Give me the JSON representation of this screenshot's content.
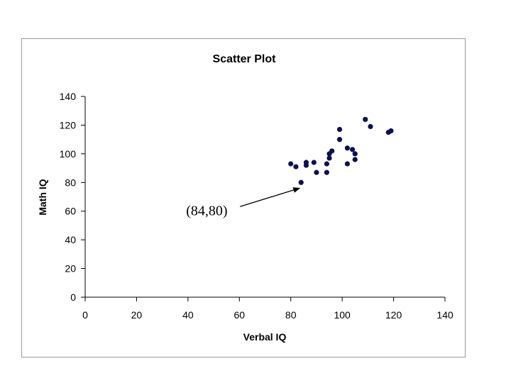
{
  "chart_data": {
    "type": "scatter",
    "title": "Scatter Plot",
    "xlabel": "Verbal IQ",
    "ylabel": "Math IQ",
    "xlim": [
      0,
      140
    ],
    "ylim": [
      0,
      140
    ],
    "xticks": [
      0,
      20,
      40,
      60,
      80,
      100,
      120,
      140
    ],
    "yticks": [
      0,
      20,
      40,
      60,
      80,
      100,
      120,
      140
    ],
    "grid": false,
    "legend": "none",
    "point_color": "#0d1050",
    "points": [
      {
        "x": 80,
        "y": 93
      },
      {
        "x": 82,
        "y": 91
      },
      {
        "x": 84,
        "y": 80
      },
      {
        "x": 86,
        "y": 94
      },
      {
        "x": 86,
        "y": 92
      },
      {
        "x": 89,
        "y": 94
      },
      {
        "x": 90,
        "y": 87
      },
      {
        "x": 94,
        "y": 93
      },
      {
        "x": 94,
        "y": 87
      },
      {
        "x": 95,
        "y": 97
      },
      {
        "x": 95,
        "y": 100
      },
      {
        "x": 96,
        "y": 102
      },
      {
        "x": 99,
        "y": 110
      },
      {
        "x": 99,
        "y": 117
      },
      {
        "x": 102,
        "y": 104
      },
      {
        "x": 102,
        "y": 93
      },
      {
        "x": 104,
        "y": 103
      },
      {
        "x": 105,
        "y": 96
      },
      {
        "x": 105,
        "y": 100
      },
      {
        "x": 109,
        "y": 124
      },
      {
        "x": 111,
        "y": 119
      },
      {
        "x": 118,
        "y": 115
      },
      {
        "x": 119,
        "y": 116
      }
    ],
    "annotation": {
      "text": "(84,80)",
      "x": 84,
      "y": 80
    }
  }
}
